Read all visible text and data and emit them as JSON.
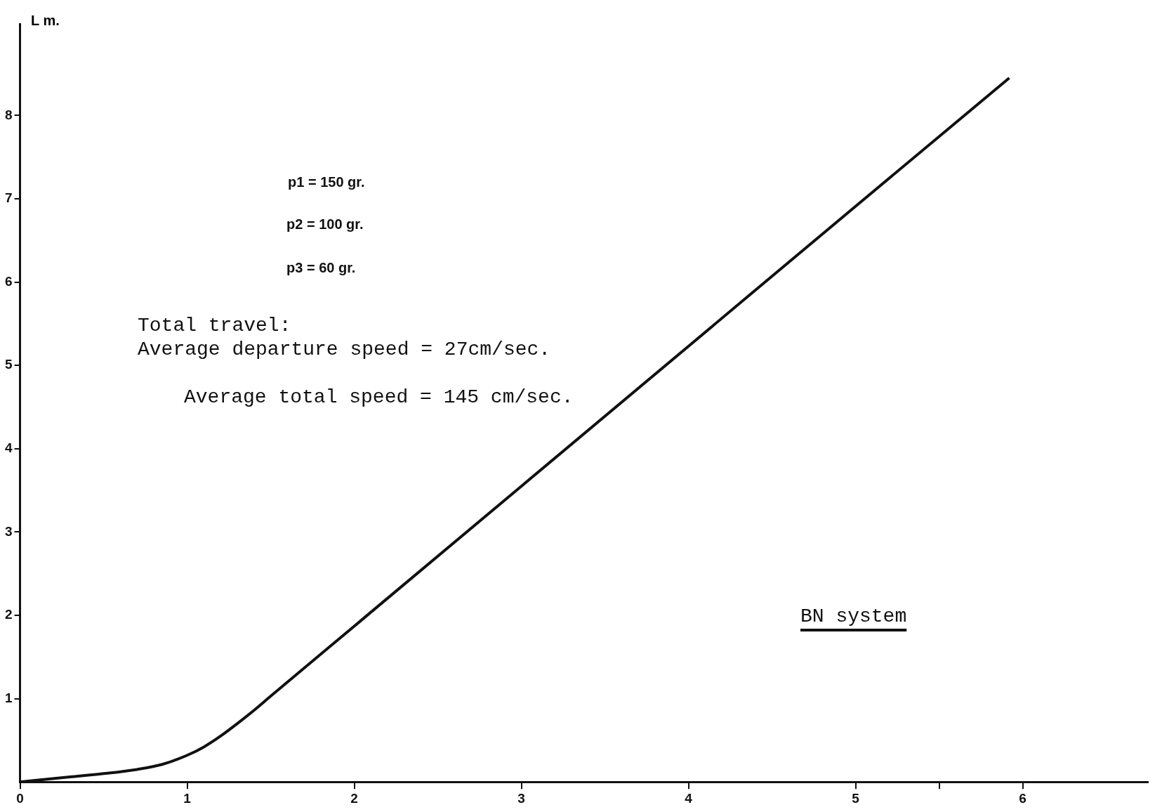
{
  "chart_data": {
    "type": "line",
    "ylabel": "L m.",
    "x": [
      0,
      0.3,
      0.5,
      0.7,
      0.85,
      1,
      1.1,
      1.2,
      1.3,
      1.4,
      1.5,
      2,
      3,
      4,
      5,
      5.92
    ],
    "series": [
      {
        "color": "#111111",
        "values": [
          0,
          0.06,
          0.1,
          0.15,
          0.21,
          0.32,
          0.42,
          0.55,
          0.7,
          0.86,
          1.03,
          1.87,
          3.55,
          5.23,
          6.91,
          8.45
        ]
      }
    ],
    "xlim": [
      0,
      6.75
    ],
    "ylim": [
      0,
      9.1
    ],
    "xticks": [
      0,
      1,
      2,
      3,
      4,
      5,
      {
        "value": 5.5,
        "label": null
      },
      6
    ],
    "yticks": [
      1,
      2,
      3,
      4,
      5,
      6,
      7,
      8
    ],
    "grid": false,
    "legend": false,
    "marker": "none",
    "line_style": "solid",
    "annotations": [
      "p1 = 150 gr.",
      "p2 = 100 gr.",
      "p3 = 60 gr.",
      "Total travel:",
      "Average departure speed = 27cm/sec.",
      "Average total speed = 145 cm/sec.",
      "BN system"
    ]
  }
}
